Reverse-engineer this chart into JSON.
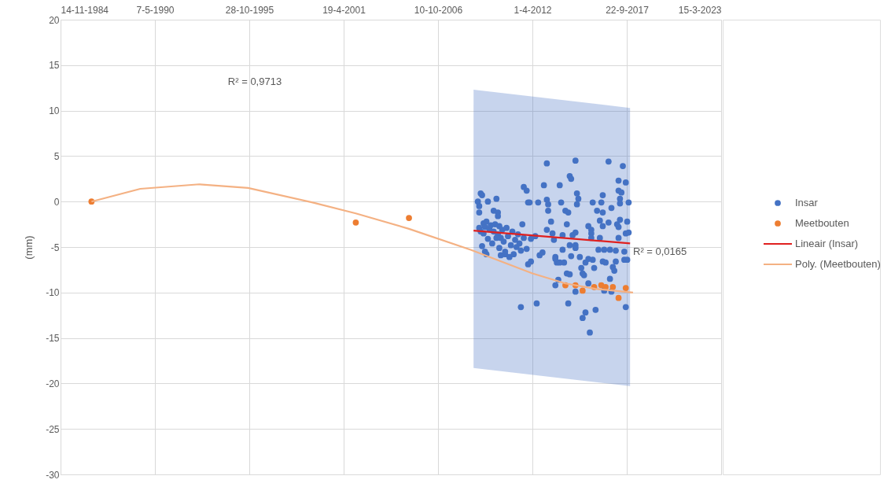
{
  "chart_data": {
    "type": "scatter",
    "ylabel": "(mm)",
    "grid": true,
    "legend": "right",
    "xlim": [
      "1984-11-14",
      "2023-03-15"
    ],
    "xticks": [
      {
        "value": "1984-11-14",
        "label": "14-11-1984"
      },
      {
        "value": "1990-05-07",
        "label": "7-5-1990"
      },
      {
        "value": "1995-10-28",
        "label": "28-10-1995"
      },
      {
        "value": "2001-04-19",
        "label": "19-4-2001"
      },
      {
        "value": "2006-10-10",
        "label": "10-10-2006"
      },
      {
        "value": "2012-04-01",
        "label": "1-4-2012"
      },
      {
        "value": "2017-09-22",
        "label": "22-9-2017"
      },
      {
        "value": "2023-03-15",
        "label": "15-3-2023"
      }
    ],
    "ylim": [
      -30,
      20
    ],
    "yticks": [
      -30,
      -25,
      -20,
      -15,
      -10,
      -5,
      0,
      5,
      10,
      15,
      20
    ],
    "annotations": [
      "R² = 0,9713",
      "R² = 0,0165"
    ],
    "series": [
      {
        "name": "Insar",
        "marker": "circle",
        "color": "#4472c4",
        "x": [
          "2009-04",
          "2009-05",
          "2009-02",
          "2009-03",
          "2009-03",
          "2009-09",
          "2010-03",
          "2010-01",
          "2010-04",
          "2010-04",
          "2009-05",
          "2009-07",
          "2009-08",
          "2010-06",
          "2010-09",
          "2010-12",
          "2012-01",
          "2012-03",
          "2011-08",
          "2012-07",
          "2011-10",
          "2011-12",
          "2012-01",
          "2012-02",
          "2012-08",
          "2013-02",
          "2012-12",
          "2013-02",
          "2013-03",
          "2013-03",
          "2013-05",
          "2013-02",
          "2013-06",
          "2013-07",
          "2012-09",
          "2012-11",
          "2013-08",
          "2013-09",
          "2013-08",
          "2013-10",
          "2012-06",
          "2012-03",
          "2009-06",
          "2009-07",
          "2009-08",
          "2009-10",
          "2009-11",
          "2010-01",
          "2010-02",
          "2010-04",
          "2010-05",
          "2010-06",
          "2010-07",
          "2010-08",
          "2010-10",
          "2010-11",
          "2011-01",
          "2011-02",
          "2011-04",
          "2011-05",
          "2011-06",
          "2011-07",
          "2011-08",
          "2011-09",
          "2011-10",
          "2011-12",
          "2009-06",
          "2009-09",
          "2009-12",
          "2010-03",
          "2010-05",
          "2010-09",
          "2011-03",
          "2009-03",
          "2009-04",
          "2014-10",
          "2016-09",
          "2017-07",
          "2014-06",
          "2014-07",
          "2013-11",
          "2017-04",
          "2017-09",
          "2014-11",
          "2014-12",
          "2014-11",
          "2016-05",
          "2017-04",
          "2017-06",
          "2017-05",
          "2017-11",
          "2017-05",
          "2013-12",
          "2015-10",
          "2016-04",
          "2014-03",
          "2014-05",
          "2016-01",
          "2016-05",
          "2016-11",
          "2016-03",
          "2016-09",
          "2017-03",
          "2017-05",
          "2017-10",
          "2014-04",
          "2015-07",
          "2015-09",
          "2016-05",
          "2017-04",
          "2017-09",
          "2017-11",
          "2014-10",
          "2014-08",
          "2015-09",
          "2015-09",
          "2014-01",
          "2016-03",
          "2017-04",
          "2014-06",
          "2014-10",
          "2014-10",
          "2014-01",
          "2016-02",
          "2016-06",
          "2016-10",
          "2017-02",
          "2017-08",
          "2017-08",
          "2017-10",
          "2013-08",
          "2013-11",
          "2014-02",
          "2014-07",
          "2015-01",
          "2015-07",
          "2015-05",
          "2015-10",
          "2016-05",
          "2016-07",
          "2017-02",
          "2016-12",
          "2017-01",
          "2015-02",
          "2015-03",
          "2014-04",
          "2014-06",
          "2015-04",
          "2015-11",
          "2016-10",
          "2014-10",
          "2015-07",
          "2016-06",
          "2016-11",
          "2014-05",
          "2015-05",
          "2015-03",
          "2015-12",
          "2015-08",
          "2017-09"
        ],
        "values": [
          0.9,
          0.7,
          0,
          -0.5,
          -1.2,
          0,
          0.3,
          -1.0,
          -1.2,
          -1.6,
          -4.9,
          -5.5,
          -5.8,
          -5.9,
          -5.8,
          -6.1,
          -6.9,
          -6.6,
          -11.6,
          -11.2,
          1.6,
          1.2,
          -0.1,
          -0.1,
          -0.1,
          4.2,
          1.8,
          0.2,
          -0.3,
          -1.0,
          -2.2,
          -3.1,
          -3.5,
          -4.2,
          -5.9,
          -5.6,
          -6.1,
          -6.7,
          -9.2,
          -8.6,
          -3.8,
          -4.1,
          -2.4,
          -2.8,
          -2.2,
          -3.0,
          -2.6,
          -3.3,
          -2.5,
          -3.6,
          -2.7,
          -4.0,
          -3.1,
          -4.4,
          -2.9,
          -3.8,
          -4.8,
          -3.3,
          -4.2,
          -5.0,
          -3.6,
          -4.6,
          -5.4,
          -2.5,
          -4.0,
          -5.2,
          -3.5,
          -4.1,
          -4.6,
          -4.0,
          -5.1,
          -5.5,
          -5.8,
          -2.9,
          -3.3,
          4.5,
          4.4,
          3.9,
          2.8,
          2.5,
          1.8,
          2.3,
          2.1,
          0.9,
          0.3,
          -0.3,
          0.7,
          1.2,
          1.0,
          0.3,
          -0.1,
          -0.2,
          -0.1,
          -0.1,
          -0.1,
          -1.0,
          -1.2,
          -1.0,
          -1.2,
          -0.7,
          -2.1,
          -2.3,
          -2.5,
          -2.0,
          -2.2,
          -2.5,
          -2.7,
          -3.1,
          -2.7,
          -2.8,
          -3.5,
          -3.4,
          -3.4,
          -3.7,
          -3.5,
          -4.0,
          -3.7,
          -4.0,
          -4.0,
          -4.8,
          -4.8,
          -5.1,
          -5.3,
          -5.3,
          -5.3,
          -5.3,
          -5.4,
          -5.5,
          -6.4,
          -6.4,
          -6.3,
          -6.7,
          -6.7,
          -6.0,
          -6.1,
          -6.3,
          -6.7,
          -6.4,
          -6.6,
          -6.7,
          -6.6,
          -7.2,
          -7.6,
          -7.3,
          -7.9,
          -7.9,
          -8.0,
          -8.1,
          -7.3,
          -8.5,
          -9.9,
          -9.0,
          -9.8,
          -9.9,
          -11.2,
          -12.2,
          -12.8,
          -11.9,
          -14.4,
          -11.6
        ]
      },
      {
        "name": "Meetbouten",
        "marker": "circle",
        "color": "#ed7d31",
        "x": [
          "1986-09",
          "2002-01",
          "2005-02",
          "2014-03",
          "2014-10",
          "2015-03",
          "2015-11",
          "2016-04",
          "2016-07",
          "2016-12",
          "2017-04",
          "2017-09"
        ],
        "values": [
          0,
          -2.3,
          -1.8,
          -9.2,
          -9.2,
          -9.8,
          -9.4,
          -9.2,
          -9.4,
          -9.4,
          -10.6,
          -9.5
        ]
      },
      {
        "name": "Lineair (Insar)",
        "type": "line",
        "color": "#e0201f",
        "x": [
          "2008-11",
          "2017-12"
        ],
        "values": [
          -3.2,
          -4.6
        ],
        "lower": [
          -18.3,
          -20.3
        ],
        "upper": [
          12.3,
          10.3
        ]
      },
      {
        "name": "Poly. (Meetbouten)",
        "type": "line",
        "color": "#f4b183",
        "x": [
          "1986-09",
          "1989-07",
          "1992-12",
          "1995-10",
          "1999-07",
          "2002-01",
          "2005-02",
          "2008-09",
          "2012-04",
          "2014-03",
          "2015-12",
          "2018-02"
        ],
        "values": [
          0,
          1.4,
          1.9,
          1.5,
          -0.1,
          -1.3,
          -3.0,
          -5.3,
          -7.9,
          -9.0,
          -9.6,
          -10.0
        ]
      }
    ]
  }
}
